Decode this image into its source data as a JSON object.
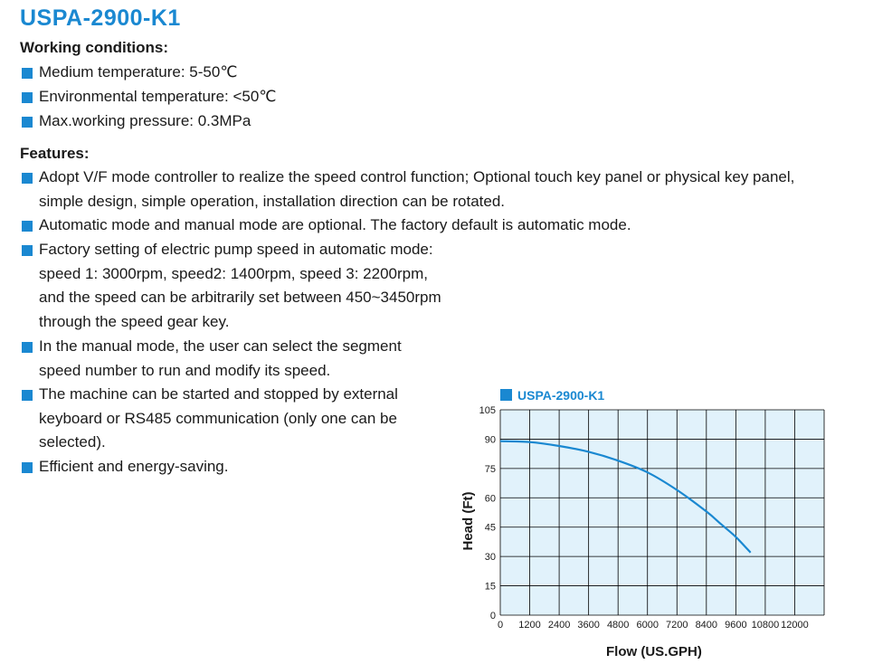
{
  "title": "USPA-2900-K1",
  "working": {
    "heading": "Working conditions:",
    "items": [
      "Medium temperature: 5-50℃",
      "Environmental temperature: <50℃",
      "Max.working pressure: 0.3MPa"
    ]
  },
  "features": {
    "heading": "Features:",
    "items": [
      "Adopt V/F mode controller to realize the speed control function; Optional touch key panel or physical key panel,\nsimple design, simple operation, installation direction can be rotated.",
      "Automatic mode and manual mode are optional. The factory default is automatic mode.",
      "Factory setting of electric pump speed in automatic mode:\nspeed 1: 3000rpm, speed2: 1400rpm, speed 3: 2200rpm,\nand the speed can be arbitrarily set between 450~3450rpm\nthrough the speed gear key.",
      "In the manual mode, the user can select the segment\nspeed number to run and modify its speed.",
      "The machine can be started and stopped by external\nkeyboard or RS485 communication (only one can be\nselected).",
      "Efficient and energy-saving."
    ]
  },
  "colors": {
    "accent": "#1a88d1",
    "plot_bg": "#e1f2fb",
    "grid": "#000000"
  },
  "chart_data": {
    "type": "line",
    "legend": "USPA-2900-K1",
    "xlabel": "Flow (US.GPH)",
    "ylabel": "Head (Ft)",
    "xlim": [
      0,
      13200
    ],
    "ylim": [
      0,
      105
    ],
    "x_ticks": [
      0,
      1200,
      2400,
      3600,
      4800,
      6000,
      7200,
      8400,
      9600,
      10800,
      12000
    ],
    "y_ticks": [
      0,
      15,
      30,
      45,
      60,
      75,
      90,
      105
    ],
    "grid": true,
    "series": [
      {
        "name": "USPA-2900-K1",
        "x": [
          0,
          1200,
          2400,
          3600,
          4800,
          6000,
          7200,
          8400,
          9000,
          9600,
          10200
        ],
        "y": [
          89,
          88.5,
          86.5,
          83.5,
          79,
          73,
          64,
          53,
          46.5,
          40,
          32
        ]
      }
    ]
  }
}
